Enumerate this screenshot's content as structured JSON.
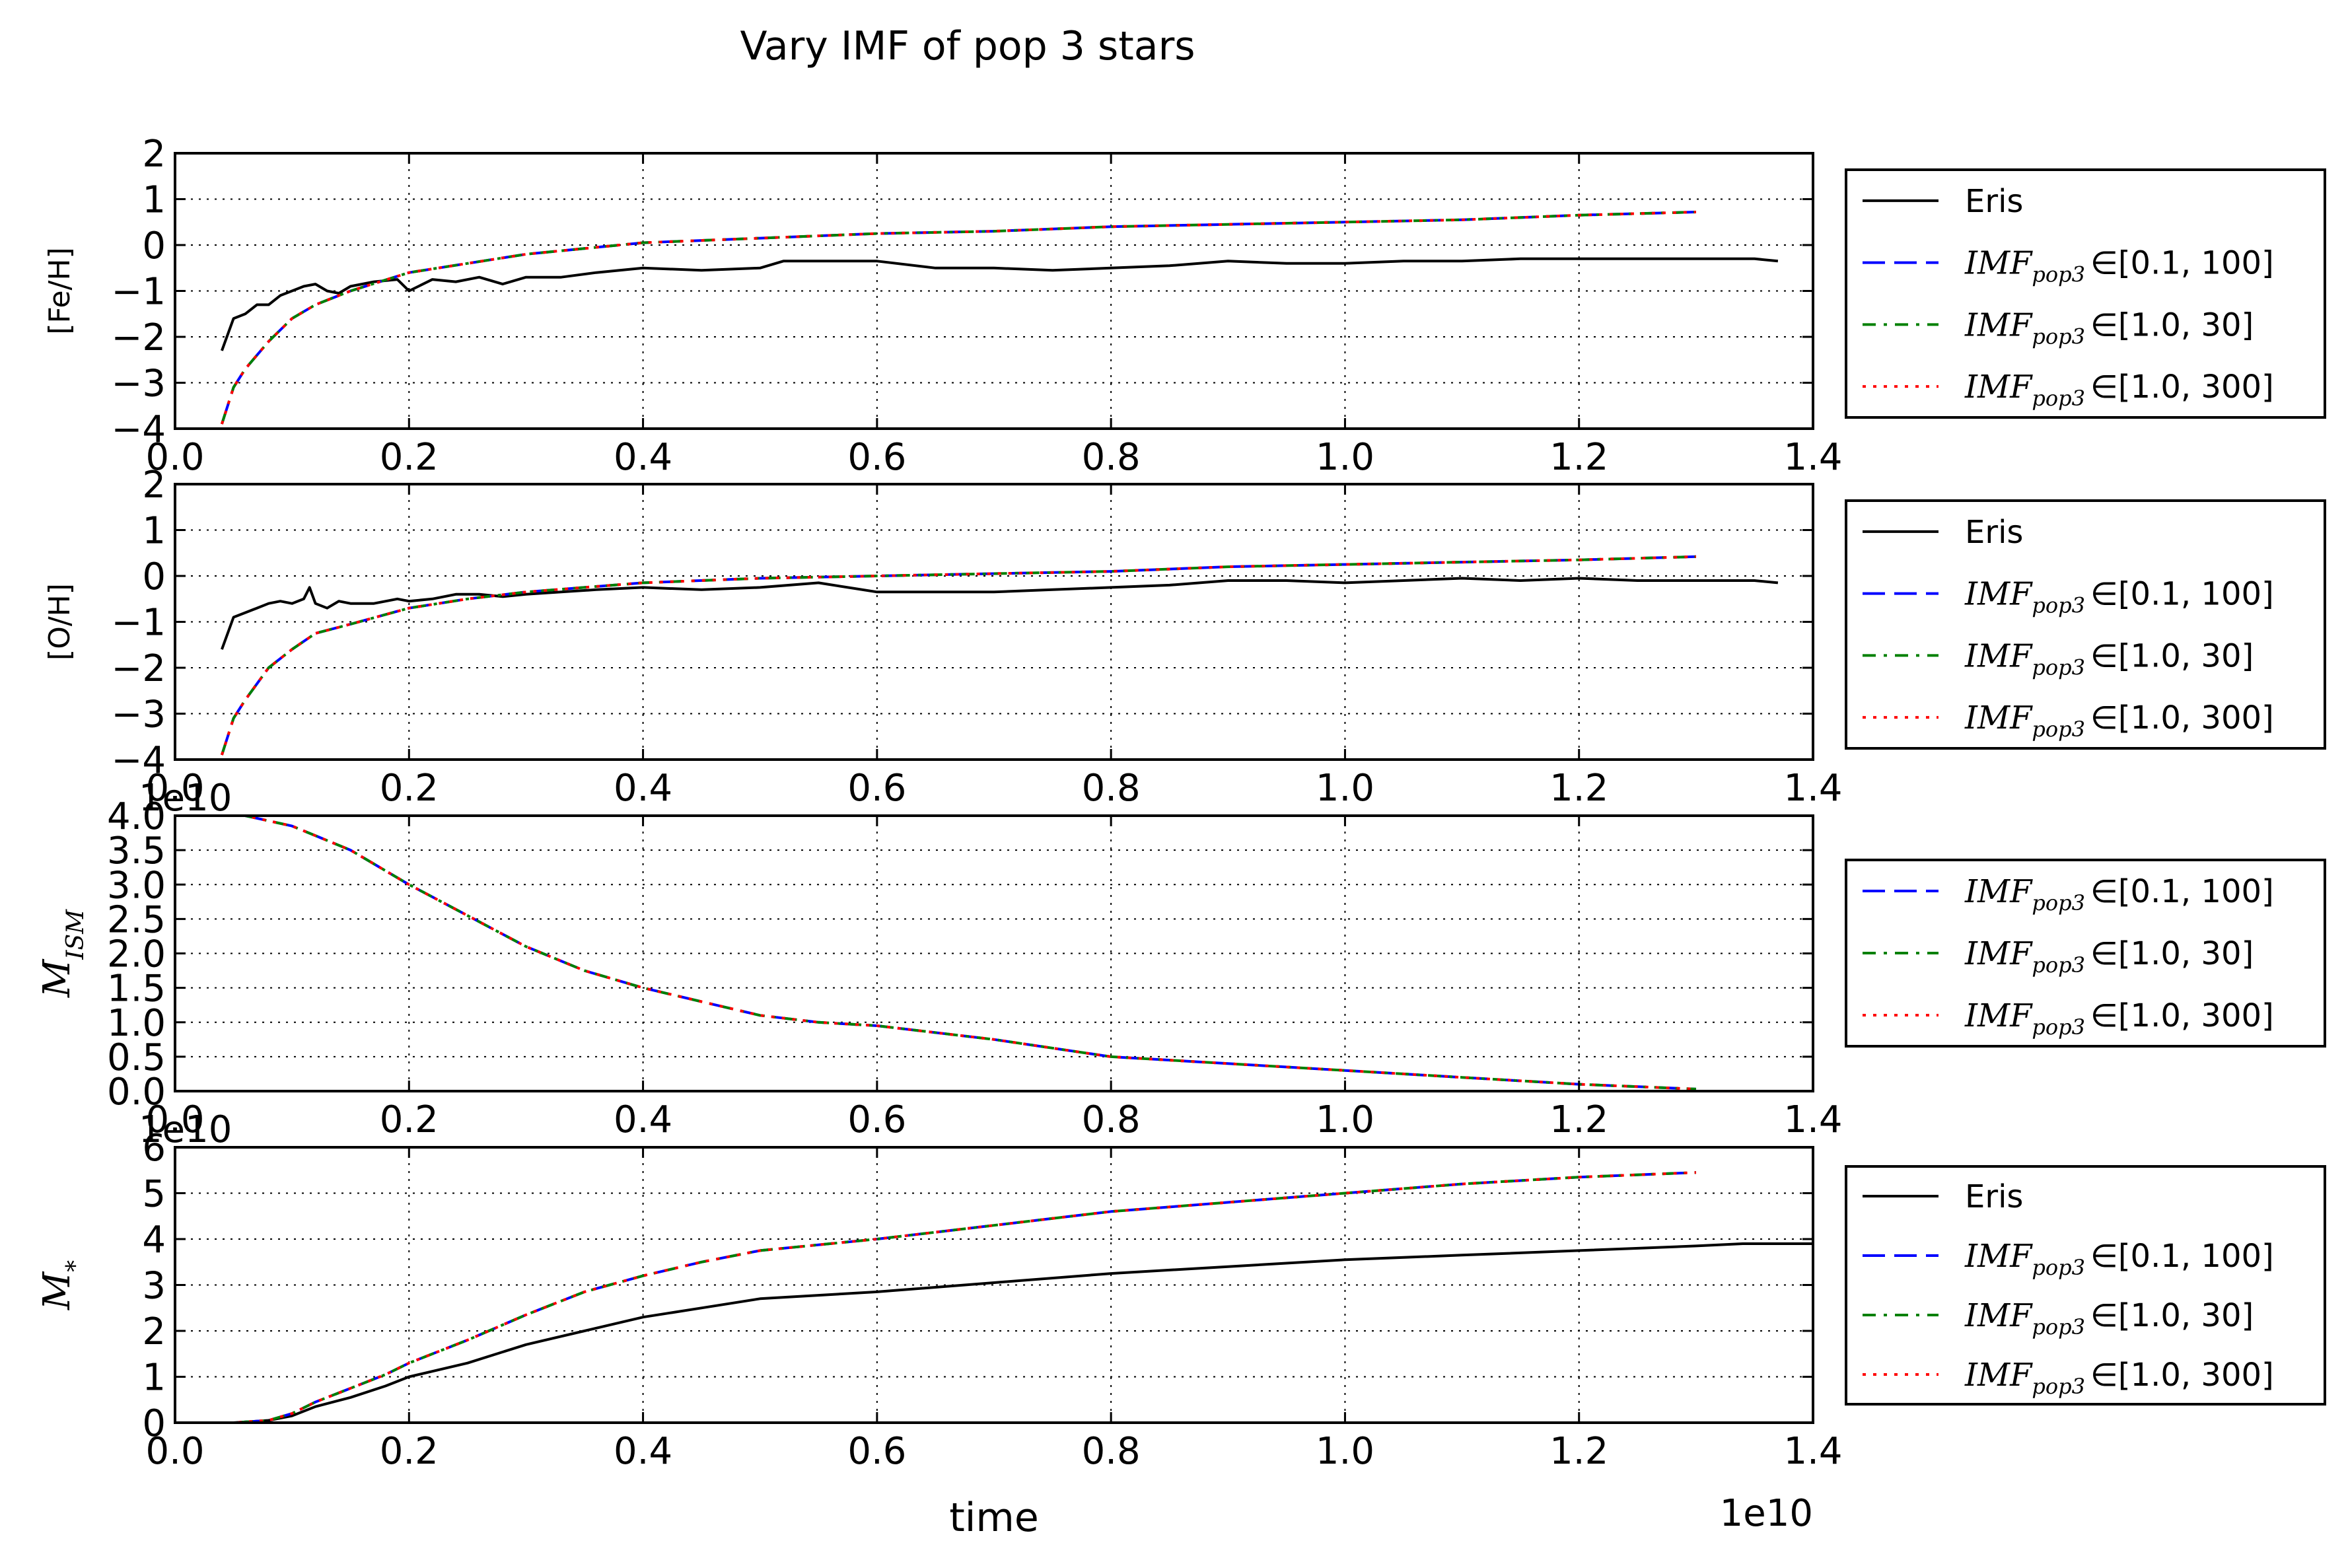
{
  "figure": {
    "title": "Vary IMF of pop 3 stars",
    "xlabel": "time",
    "x_offset_label": "1e10"
  },
  "chart_data": [
    {
      "type": "line",
      "ylabel": "[Fe/H]",
      "xlim": [
        0.0,
        1.4
      ],
      "ylim": [
        -4,
        2
      ],
      "x_scale": "1e10",
      "xticks": [
        "0.0",
        "0.2",
        "0.4",
        "0.6",
        "0.8",
        "1.0",
        "1.2",
        "1.4"
      ],
      "yticks": [
        "−4",
        "−3",
        "−2",
        "−1",
        "0",
        "1",
        "2"
      ],
      "grid": true,
      "legend_placement": "right",
      "series": [
        {
          "name": "Eris",
          "imf": "",
          "color": "#000000",
          "style": "solid",
          "x": [
            0.04,
            0.05,
            0.06,
            0.07,
            0.08,
            0.09,
            0.1,
            0.11,
            0.12,
            0.13,
            0.14,
            0.15,
            0.17,
            0.19,
            0.2,
            0.22,
            0.24,
            0.26,
            0.28,
            0.3,
            0.33,
            0.36,
            0.4,
            0.45,
            0.5,
            0.52,
            0.55,
            0.6,
            0.65,
            0.7,
            0.75,
            0.8,
            0.85,
            0.9,
            0.95,
            1.0,
            1.05,
            1.1,
            1.15,
            1.2,
            1.25,
            1.3,
            1.35,
            1.37
          ],
          "y": [
            -2.3,
            -1.6,
            -1.5,
            -1.3,
            -1.3,
            -1.1,
            -1.0,
            -0.9,
            -0.85,
            -1.0,
            -1.05,
            -0.9,
            -0.8,
            -0.75,
            -1.0,
            -0.75,
            -0.8,
            -0.7,
            -0.85,
            -0.7,
            -0.7,
            -0.6,
            -0.5,
            -0.55,
            -0.5,
            -0.35,
            -0.35,
            -0.35,
            -0.5,
            -0.5,
            -0.55,
            -0.5,
            -0.45,
            -0.35,
            -0.4,
            -0.4,
            -0.35,
            -0.35,
            -0.3,
            -0.3,
            -0.3,
            -0.3,
            -0.3,
            -0.35
          ]
        },
        {
          "name": "IMF",
          "sub": "pop3",
          "range": "∈[0.1, 100]",
          "color": "#0000ff",
          "style": "dashed",
          "x": [
            0.04,
            0.05,
            0.06,
            0.08,
            0.1,
            0.12,
            0.15,
            0.2,
            0.25,
            0.3,
            0.4,
            0.5,
            0.6,
            0.7,
            0.8,
            0.9,
            1.0,
            1.1,
            1.2,
            1.3
          ],
          "y": [
            -3.9,
            -3.1,
            -2.7,
            -2.1,
            -1.6,
            -1.3,
            -1.0,
            -0.6,
            -0.4,
            -0.2,
            0.05,
            0.15,
            0.25,
            0.3,
            0.4,
            0.45,
            0.5,
            0.55,
            0.65,
            0.72
          ]
        },
        {
          "name": "IMF",
          "sub": "pop3",
          "range": "∈[1.0, 30]",
          "color": "#008000",
          "style": "dashdot",
          "x": [
            0.04,
            0.05,
            0.06,
            0.08,
            0.1,
            0.12,
            0.15,
            0.2,
            0.25,
            0.3,
            0.4,
            0.5,
            0.6,
            0.7,
            0.8,
            0.9,
            1.0,
            1.1,
            1.2,
            1.3
          ],
          "y": [
            -3.9,
            -3.1,
            -2.7,
            -2.1,
            -1.6,
            -1.3,
            -1.0,
            -0.6,
            -0.4,
            -0.2,
            0.05,
            0.15,
            0.25,
            0.3,
            0.4,
            0.45,
            0.5,
            0.55,
            0.65,
            0.72
          ]
        },
        {
          "name": "IMF",
          "sub": "pop3",
          "range": "∈[1.0, 300]",
          "color": "#ff0000",
          "style": "dotted",
          "x": [
            0.04,
            0.05,
            0.06,
            0.08,
            0.1,
            0.12,
            0.15,
            0.2,
            0.25,
            0.3,
            0.4,
            0.5,
            0.6,
            0.7,
            0.8,
            0.9,
            1.0,
            1.1,
            1.2,
            1.3
          ],
          "y": [
            -3.9,
            -3.1,
            -2.7,
            -2.1,
            -1.6,
            -1.3,
            -1.0,
            -0.6,
            -0.4,
            -0.2,
            0.05,
            0.15,
            0.25,
            0.3,
            0.4,
            0.45,
            0.5,
            0.55,
            0.65,
            0.72
          ]
        }
      ]
    },
    {
      "type": "line",
      "ylabel": "[O/H]",
      "xlim": [
        0.0,
        1.4
      ],
      "ylim": [
        -4,
        2
      ],
      "x_scale": "1e10",
      "xticks": [
        "0.0",
        "0.2",
        "0.4",
        "0.6",
        "0.8",
        "1.0",
        "1.2",
        "1.4"
      ],
      "yticks": [
        "−4",
        "−3",
        "−2",
        "−1",
        "0",
        "1",
        "2"
      ],
      "grid": true,
      "legend_placement": "right",
      "series": [
        {
          "name": "Eris",
          "imf": "",
          "color": "#000000",
          "style": "solid",
          "x": [
            0.04,
            0.05,
            0.06,
            0.07,
            0.08,
            0.09,
            0.1,
            0.11,
            0.115,
            0.12,
            0.13,
            0.14,
            0.15,
            0.17,
            0.19,
            0.2,
            0.22,
            0.24,
            0.26,
            0.28,
            0.3,
            0.33,
            0.36,
            0.4,
            0.45,
            0.5,
            0.55,
            0.6,
            0.65,
            0.7,
            0.75,
            0.8,
            0.85,
            0.9,
            0.95,
            1.0,
            1.05,
            1.1,
            1.15,
            1.2,
            1.25,
            1.3,
            1.35,
            1.37
          ],
          "y": [
            -1.6,
            -0.9,
            -0.8,
            -0.7,
            -0.6,
            -0.55,
            -0.6,
            -0.5,
            -0.25,
            -0.6,
            -0.7,
            -0.55,
            -0.6,
            -0.6,
            -0.5,
            -0.55,
            -0.5,
            -0.4,
            -0.4,
            -0.45,
            -0.4,
            -0.35,
            -0.3,
            -0.25,
            -0.3,
            -0.25,
            -0.15,
            -0.35,
            -0.35,
            -0.35,
            -0.3,
            -0.25,
            -0.2,
            -0.1,
            -0.1,
            -0.15,
            -0.1,
            -0.05,
            -0.1,
            -0.05,
            -0.1,
            -0.1,
            -0.1,
            -0.15
          ]
        },
        {
          "name": "IMF",
          "sub": "pop3",
          "range": "∈[0.1, 100]",
          "color": "#0000ff",
          "style": "dashed",
          "x": [
            0.04,
            0.05,
            0.06,
            0.08,
            0.1,
            0.12,
            0.15,
            0.2,
            0.25,
            0.3,
            0.4,
            0.5,
            0.6,
            0.7,
            0.8,
            0.9,
            1.0,
            1.1,
            1.2,
            1.3
          ],
          "y": [
            -3.9,
            -3.1,
            -2.7,
            -2.0,
            -1.6,
            -1.25,
            -1.05,
            -0.7,
            -0.5,
            -0.35,
            -0.15,
            -0.05,
            0.0,
            0.05,
            0.1,
            0.2,
            0.25,
            0.3,
            0.35,
            0.42
          ]
        },
        {
          "name": "IMF",
          "sub": "pop3",
          "range": "∈[1.0, 30]",
          "color": "#008000",
          "style": "dashdot",
          "x": [
            0.04,
            0.05,
            0.06,
            0.08,
            0.1,
            0.12,
            0.15,
            0.2,
            0.25,
            0.3,
            0.4,
            0.5,
            0.6,
            0.7,
            0.8,
            0.9,
            1.0,
            1.1,
            1.2,
            1.3
          ],
          "y": [
            -3.9,
            -3.1,
            -2.7,
            -2.0,
            -1.6,
            -1.25,
            -1.05,
            -0.7,
            -0.5,
            -0.35,
            -0.15,
            -0.05,
            0.0,
            0.05,
            0.1,
            0.2,
            0.25,
            0.3,
            0.35,
            0.42
          ]
        },
        {
          "name": "IMF",
          "sub": "pop3",
          "range": "∈[1.0, 300]",
          "color": "#ff0000",
          "style": "dotted",
          "x": [
            0.04,
            0.05,
            0.06,
            0.08,
            0.1,
            0.12,
            0.15,
            0.2,
            0.25,
            0.3,
            0.4,
            0.5,
            0.6,
            0.7,
            0.8,
            0.9,
            1.0,
            1.1,
            1.2,
            1.3
          ],
          "y": [
            -3.9,
            -3.1,
            -2.7,
            -2.0,
            -1.6,
            -1.25,
            -1.05,
            -0.7,
            -0.5,
            -0.35,
            -0.15,
            -0.05,
            0.0,
            0.05,
            0.1,
            0.2,
            0.25,
            0.3,
            0.35,
            0.42
          ]
        }
      ]
    },
    {
      "type": "line",
      "ylabel": "M",
      "ylabel_sub": "ISM",
      "xlim": [
        0.0,
        1.4
      ],
      "ylim": [
        0.0,
        4.0
      ],
      "x_scale": "1e10",
      "y_offset_label": "1e10",
      "xticks": [
        "0.0",
        "0.2",
        "0.4",
        "0.6",
        "0.8",
        "1.0",
        "1.2",
        "1.4"
      ],
      "yticks": [
        "0.0",
        "0.5",
        "1.0",
        "1.5",
        "2.0",
        "2.5",
        "3.0",
        "3.5",
        "4.0"
      ],
      "grid": true,
      "legend_placement": "right",
      "series": [
        {
          "name": "IMF",
          "sub": "pop3",
          "range": "∈[0.1, 100]",
          "color": "#0000ff",
          "style": "dashed",
          "x": [
            0.03,
            0.06,
            0.1,
            0.15,
            0.2,
            0.25,
            0.3,
            0.35,
            0.4,
            0.45,
            0.5,
            0.55,
            0.6,
            0.7,
            0.8,
            0.9,
            1.0,
            1.1,
            1.2,
            1.3
          ],
          "y": [
            4.0,
            4.0,
            3.85,
            3.5,
            3.0,
            2.55,
            2.1,
            1.75,
            1.5,
            1.3,
            1.1,
            1.0,
            0.95,
            0.75,
            0.5,
            0.4,
            0.3,
            0.2,
            0.1,
            0.03
          ]
        },
        {
          "name": "IMF",
          "sub": "pop3",
          "range": "∈[1.0, 30]",
          "color": "#008000",
          "style": "dashdot",
          "x": [
            0.03,
            0.06,
            0.1,
            0.15,
            0.2,
            0.25,
            0.3,
            0.35,
            0.4,
            0.45,
            0.5,
            0.55,
            0.6,
            0.7,
            0.8,
            0.9,
            1.0,
            1.1,
            1.2,
            1.3
          ],
          "y": [
            4.0,
            4.0,
            3.85,
            3.5,
            3.0,
            2.55,
            2.1,
            1.75,
            1.5,
            1.3,
            1.1,
            1.0,
            0.95,
            0.75,
            0.5,
            0.4,
            0.3,
            0.2,
            0.1,
            0.03
          ]
        },
        {
          "name": "IMF",
          "sub": "pop3",
          "range": "∈[1.0, 300]",
          "color": "#ff0000",
          "style": "dotted",
          "x": [
            0.03,
            0.06,
            0.1,
            0.15,
            0.2,
            0.25,
            0.3,
            0.35,
            0.4,
            0.45,
            0.5,
            0.55,
            0.6,
            0.7,
            0.8,
            0.9,
            1.0,
            1.1,
            1.2,
            1.3
          ],
          "y": [
            4.0,
            4.0,
            3.85,
            3.5,
            3.0,
            2.55,
            2.1,
            1.75,
            1.5,
            1.3,
            1.1,
            1.0,
            0.95,
            0.75,
            0.5,
            0.4,
            0.3,
            0.2,
            0.1,
            0.03
          ]
        }
      ]
    },
    {
      "type": "line",
      "ylabel": "M",
      "ylabel_sub": "*",
      "xlim": [
        0.0,
        1.4
      ],
      "ylim": [
        0,
        6
      ],
      "x_scale": "1e10",
      "y_offset_label": "1e10",
      "xticks": [
        "0.0",
        "0.2",
        "0.4",
        "0.6",
        "0.8",
        "1.0",
        "1.2",
        "1.4"
      ],
      "yticks": [
        "0",
        "1",
        "2",
        "3",
        "4",
        "5",
        "6"
      ],
      "grid": true,
      "legend_placement": "right",
      "series": [
        {
          "name": "Eris",
          "imf": "",
          "color": "#000000",
          "style": "solid",
          "x": [
            0.0,
            0.05,
            0.08,
            0.1,
            0.12,
            0.15,
            0.18,
            0.2,
            0.25,
            0.3,
            0.35,
            0.4,
            0.45,
            0.5,
            0.6,
            0.7,
            0.8,
            0.9,
            1.0,
            1.1,
            1.2,
            1.3,
            1.34,
            1.4
          ],
          "y": [
            0.0,
            0.0,
            0.05,
            0.15,
            0.35,
            0.55,
            0.8,
            1.0,
            1.3,
            1.7,
            2.0,
            2.3,
            2.5,
            2.7,
            2.85,
            3.05,
            3.25,
            3.4,
            3.55,
            3.65,
            3.75,
            3.85,
            3.9,
            3.9
          ]
        },
        {
          "name": "IMF",
          "sub": "pop3",
          "range": "∈[0.1, 100]",
          "color": "#0000ff",
          "style": "dashed",
          "x": [
            0.0,
            0.05,
            0.08,
            0.1,
            0.12,
            0.15,
            0.18,
            0.2,
            0.25,
            0.3,
            0.35,
            0.4,
            0.45,
            0.5,
            0.6,
            0.7,
            0.8,
            0.9,
            1.0,
            1.1,
            1.2,
            1.3
          ],
          "y": [
            0.0,
            0.0,
            0.05,
            0.2,
            0.45,
            0.75,
            1.05,
            1.3,
            1.8,
            2.35,
            2.85,
            3.2,
            3.5,
            3.75,
            4.0,
            4.3,
            4.6,
            4.8,
            5.0,
            5.2,
            5.35,
            5.45
          ]
        },
        {
          "name": "IMF",
          "sub": "pop3",
          "range": "∈[1.0, 30]",
          "color": "#008000",
          "style": "dashdot",
          "x": [
            0.0,
            0.05,
            0.08,
            0.1,
            0.12,
            0.15,
            0.18,
            0.2,
            0.25,
            0.3,
            0.35,
            0.4,
            0.45,
            0.5,
            0.6,
            0.7,
            0.8,
            0.9,
            1.0,
            1.1,
            1.2,
            1.3
          ],
          "y": [
            0.0,
            0.0,
            0.05,
            0.2,
            0.45,
            0.75,
            1.05,
            1.3,
            1.8,
            2.35,
            2.85,
            3.2,
            3.5,
            3.75,
            4.0,
            4.3,
            4.6,
            4.8,
            5.0,
            5.2,
            5.35,
            5.45
          ]
        },
        {
          "name": "IMF",
          "sub": "pop3",
          "range": "∈[1.0, 300]",
          "color": "#ff0000",
          "style": "dotted",
          "x": [
            0.0,
            0.05,
            0.08,
            0.1,
            0.12,
            0.15,
            0.18,
            0.2,
            0.25,
            0.3,
            0.35,
            0.4,
            0.45,
            0.5,
            0.6,
            0.7,
            0.8,
            0.9,
            1.0,
            1.1,
            1.2,
            1.3
          ],
          "y": [
            0.0,
            0.0,
            0.05,
            0.2,
            0.45,
            0.75,
            1.05,
            1.3,
            1.8,
            2.35,
            2.85,
            3.2,
            3.5,
            3.75,
            4.0,
            4.3,
            4.6,
            4.8,
            5.0,
            5.2,
            5.35,
            5.45
          ]
        }
      ]
    }
  ]
}
